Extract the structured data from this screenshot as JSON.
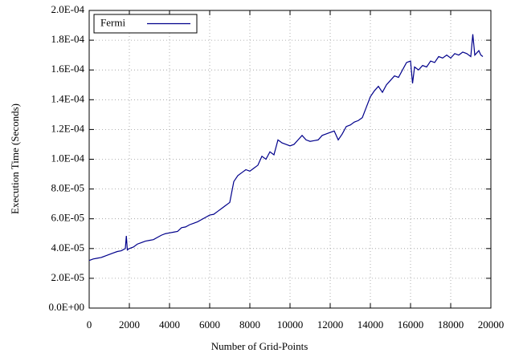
{
  "chart_data": {
    "type": "line",
    "xlabel": "Number of Grid-Points",
    "ylabel": "Execution Time (Seconds)",
    "x": [
      0,
      200,
      400,
      600,
      800,
      1000,
      1200,
      1400,
      1600,
      1800,
      1850,
      1900,
      2000,
      2200,
      2400,
      2600,
      2800,
      3000,
      3200,
      3400,
      3600,
      3800,
      4000,
      4200,
      4400,
      4600,
      4800,
      5000,
      5200,
      5400,
      5600,
      5800,
      6000,
      6200,
      6400,
      6600,
      6800,
      7000,
      7200,
      7400,
      7600,
      7800,
      8000,
      8200,
      8400,
      8600,
      8800,
      9000,
      9200,
      9400,
      9600,
      9800,
      10000,
      10200,
      10400,
      10600,
      10800,
      11000,
      11200,
      11400,
      11600,
      11800,
      12000,
      12200,
      12400,
      12600,
      12800,
      13000,
      13200,
      13400,
      13600,
      13800,
      14000,
      14200,
      14400,
      14600,
      14800,
      15000,
      15200,
      15400,
      15600,
      15800,
      16000,
      16100,
      16200,
      16400,
      16600,
      16800,
      17000,
      17200,
      17400,
      17600,
      17800,
      18000,
      18200,
      18400,
      18600,
      18800,
      19000,
      19100,
      19200,
      19400,
      19500,
      19600
    ],
    "series": [
      {
        "name": "Fermi",
        "color": "#00008b",
        "values": [
          3.2e-05,
          3.3e-05,
          3.35e-05,
          3.4e-05,
          3.5e-05,
          3.6e-05,
          3.7e-05,
          3.8e-05,
          3.85e-05,
          4e-05,
          4.85e-05,
          3.9e-05,
          4e-05,
          4.1e-05,
          4.3e-05,
          4.4e-05,
          4.5e-05,
          4.55e-05,
          4.6e-05,
          4.75e-05,
          4.9e-05,
          5e-05,
          5.05e-05,
          5.1e-05,
          5.15e-05,
          5.4e-05,
          5.45e-05,
          5.6e-05,
          5.7e-05,
          5.8e-05,
          5.95e-05,
          6.1e-05,
          6.25e-05,
          6.3e-05,
          6.5e-05,
          6.7e-05,
          6.9e-05,
          7.1e-05,
          8.5e-05,
          8.9e-05,
          9.1e-05,
          9.3e-05,
          9.2e-05,
          9.4e-05,
          9.6e-05,
          0.000102,
          0.0001,
          0.000105,
          0.000103,
          0.000113,
          0.000111,
          0.00011,
          0.000109,
          0.00011,
          0.000113,
          0.000116,
          0.000113,
          0.000112,
          0.0001125,
          0.000113,
          0.000116,
          0.000117,
          0.000118,
          0.000119,
          0.000113,
          0.000117,
          0.000122,
          0.000123,
          0.000125,
          0.000126,
          0.000128,
          0.000135,
          0.000142,
          0.000146,
          0.000149,
          0.000145,
          0.00015,
          0.000153,
          0.000156,
          0.000155,
          0.00016,
          0.000165,
          0.000166,
          0.000151,
          0.000162,
          0.00016,
          0.000163,
          0.000162,
          0.000166,
          0.000165,
          0.000169,
          0.000168,
          0.00017,
          0.000168,
          0.000171,
          0.00017,
          0.000172,
          0.000171,
          0.000169,
          0.000184,
          0.00017,
          0.000173,
          0.00017,
          0.000169
        ]
      }
    ],
    "xlim": [
      0,
      20000
    ],
    "xticks": [
      0,
      2000,
      4000,
      6000,
      8000,
      10000,
      12000,
      14000,
      16000,
      18000,
      20000
    ],
    "ylim": [
      0,
      0.0002
    ],
    "yticks": [
      {
        "value": 0,
        "label": "0.0E+00"
      },
      {
        "value": 2e-05,
        "label": "2.0E-05"
      },
      {
        "value": 4e-05,
        "label": "4.0E-05"
      },
      {
        "value": 6e-05,
        "label": "6.0E-05"
      },
      {
        "value": 8e-05,
        "label": "8.0E-05"
      },
      {
        "value": 0.0001,
        "label": "1.0E-04"
      },
      {
        "value": 0.00012,
        "label": "1.2E-04"
      },
      {
        "value": 0.00014,
        "label": "1.4E-04"
      },
      {
        "value": 0.00016,
        "label": "1.6E-04"
      },
      {
        "value": 0.00018,
        "label": "1.8E-04"
      },
      {
        "value": 0.0002,
        "label": "2.0E-04"
      }
    ],
    "grid": true,
    "legend": "top-left"
  }
}
